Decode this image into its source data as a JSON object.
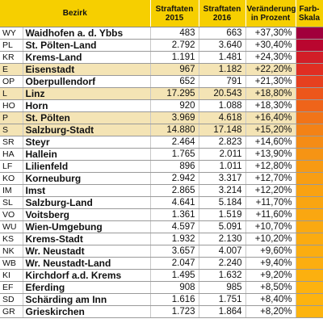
{
  "table": {
    "header": [
      "Bezirk",
      "Straftaten 2015",
      "Straftaten 2016",
      "Veränderung in Prozent",
      "Farb-Skala"
    ],
    "rows": [
      {
        "code": "WY",
        "name": "Waidhofen a. d. Ybbs",
        "y2015": "483",
        "y2016": "663",
        "change": "+37,30%",
        "color": "#a1003c",
        "highlight": false
      },
      {
        "code": "PL",
        "name": "St. Pölten-Land",
        "y2015": "2.792",
        "y2016": "3.640",
        "change": "+30,40%",
        "color": "#b9062f",
        "highlight": false
      },
      {
        "code": "KR",
        "name": "Krems-Land",
        "y2015": "1.191",
        "y2016": "1.481",
        "change": "+24,30%",
        "color": "#d21e28",
        "highlight": false
      },
      {
        "code": "E",
        "name": "Eisenstadt",
        "y2015": "967",
        "y2016": "1.182",
        "change": "+22,20%",
        "color": "#e02e22",
        "highlight": true
      },
      {
        "code": "OP",
        "name": "Oberpullendorf",
        "y2015": "652",
        "y2016": "791",
        "change": "+21,30%",
        "color": "#e6401f",
        "highlight": false
      },
      {
        "code": "L",
        "name": "Linz",
        "y2015": "17.295",
        "y2016": "20.543",
        "change": "+18,80%",
        "color": "#ec561b",
        "highlight": true
      },
      {
        "code": "HO",
        "name": "Horn",
        "y2015": "920",
        "y2016": "1.088",
        "change": "+18,30%",
        "color": "#ef641a",
        "highlight": false
      },
      {
        "code": "P",
        "name": "St. Pölten",
        "y2015": "3.969",
        "y2016": "4.618",
        "change": "+16,40%",
        "color": "#f17418",
        "highlight": true
      },
      {
        "code": "S",
        "name": "Salzburg-Stadt",
        "y2015": "14.880",
        "y2016": "17.148",
        "change": "+15,20%",
        "color": "#f38216",
        "highlight": true
      },
      {
        "code": "SR",
        "name": "Steyr",
        "y2015": "2.464",
        "y2016": "2.823",
        "change": "+14,60%",
        "color": "#f58c15",
        "highlight": false
      },
      {
        "code": "HA",
        "name": "Hallein",
        "y2015": "1.765",
        "y2016": "2.011",
        "change": "+13,90%",
        "color": "#f69414",
        "highlight": false
      },
      {
        "code": "LF",
        "name": "Lilienfeld",
        "y2015": "896",
        "y2016": "1.011",
        "change": "+12,80%",
        "color": "#f79a13",
        "highlight": false
      },
      {
        "code": "KO",
        "name": "Korneuburg",
        "y2015": "2.942",
        "y2016": "3.317",
        "change": "+12,70%",
        "color": "#f89e13",
        "highlight": false
      },
      {
        "code": "IM",
        "name": "Imst",
        "y2015": "2.865",
        "y2016": "3.214",
        "change": "+12,20%",
        "color": "#f9a212",
        "highlight": false
      },
      {
        "code": "SL",
        "name": "Salzburg-Land",
        "y2015": "4.641",
        "y2016": "5.184",
        "change": "+11,70%",
        "color": "#f9a512",
        "highlight": false
      },
      {
        "code": "VO",
        "name": "Voitsberg",
        "y2015": "1.361",
        "y2016": "1.519",
        "change": "+11,60%",
        "color": "#faa711",
        "highlight": false
      },
      {
        "code": "WU",
        "name": "Wien-Umgebung",
        "y2015": "4.597",
        "y2016": "5.091",
        "change": "+10,70%",
        "color": "#faa911",
        "highlight": false
      },
      {
        "code": "KS",
        "name": "Krems-Stadt",
        "y2015": "1.932",
        "y2016": "2.130",
        "change": "+10,20%",
        "color": "#fbab10",
        "highlight": false
      },
      {
        "code": "NK",
        "name": "Wr. Neustadt",
        "y2015": "3.657",
        "y2016": "4.007",
        "change": "+9,60%",
        "color": "#fbad10",
        "highlight": false
      },
      {
        "code": "WB",
        "name": "Wr. Neustadt-Land",
        "y2015": "2.047",
        "y2016": "2.240",
        "change": "+9,40%",
        "color": "#fcae10",
        "highlight": false
      },
      {
        "code": "KI",
        "name": "Kirchdorf a.d. Krems",
        "y2015": "1.495",
        "y2016": "1.632",
        "change": "+9,20%",
        "color": "#fcb00f",
        "highlight": false
      },
      {
        "code": "EF",
        "name": "Eferding",
        "y2015": "908",
        "y2016": "985",
        "change": "+8,50%",
        "color": "#fdb20f",
        "highlight": false
      },
      {
        "code": "SD",
        "name": "Schärding am Inn",
        "y2015": "1.616",
        "y2016": "1.751",
        "change": "+8,40%",
        "color": "#fdb30f",
        "highlight": false
      },
      {
        "code": "GR",
        "name": "Grieskirchen",
        "y2015": "1.723",
        "y2016": "1.864",
        "change": "+8,20%",
        "color": "#fdb40f",
        "highlight": false
      }
    ]
  }
}
